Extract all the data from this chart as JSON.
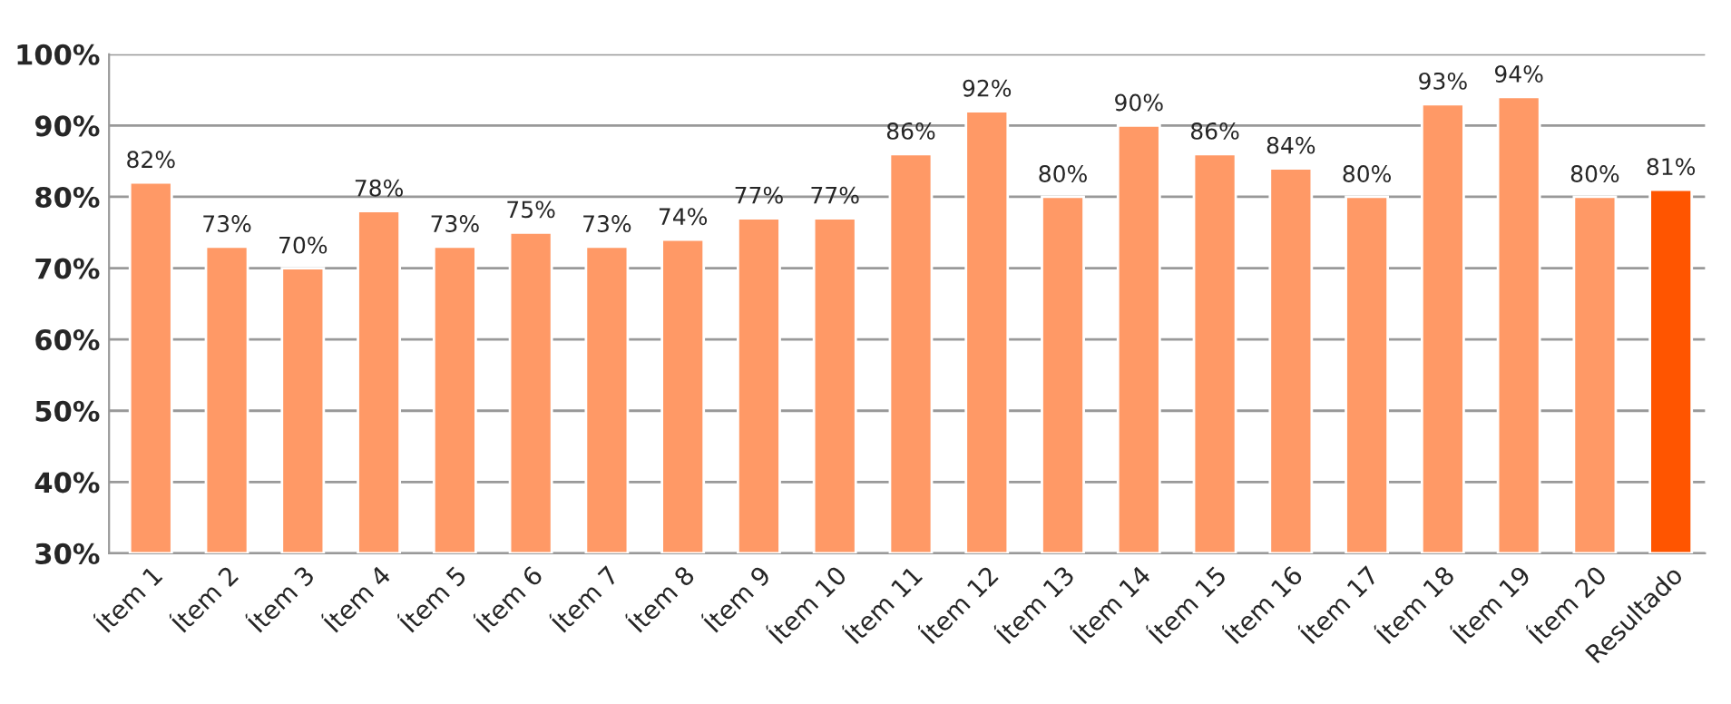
{
  "chart_data": {
    "type": "bar",
    "categories": [
      "Ítem 1",
      "Ítem 2",
      "Ítem 3",
      "Ítem 4",
      "Ítem 5",
      "Ítem 6",
      "Ítem 7",
      "Ítem 8",
      "Ítem 9",
      "Ítem 10",
      "Ítem 11",
      "Ítem 12",
      "Ítem 13",
      "Ítem 14",
      "Ítem 15",
      "Ítem 16",
      "Ítem 17",
      "Ítem 18",
      "Ítem 19",
      "Ítem 20",
      "Resultado"
    ],
    "values": [
      82,
      73,
      70,
      78,
      73,
      75,
      73,
      74,
      77,
      77,
      86,
      92,
      80,
      90,
      86,
      84,
      80,
      93,
      94,
      80,
      81
    ],
    "value_labels": [
      "82%",
      "73%",
      "70%",
      "78%",
      "73%",
      "75%",
      "73%",
      "74%",
      "77%",
      "77%",
      "86%",
      "92%",
      "80%",
      "90%",
      "86%",
      "84%",
      "80%",
      "93%",
      "94%",
      "80%",
      "81%"
    ],
    "colors": [
      "#ff9966",
      "#ff9966",
      "#ff9966",
      "#ff9966",
      "#ff9966",
      "#ff9966",
      "#ff9966",
      "#ff9966",
      "#ff9966",
      "#ff9966",
      "#ff9966",
      "#ff9966",
      "#ff9966",
      "#ff9966",
      "#ff9966",
      "#ff9966",
      "#ff9966",
      "#ff9966",
      "#ff9966",
      "#ff9966",
      "#ff5500"
    ],
    "ylim": [
      30,
      100
    ],
    "yticks": [
      {
        "value": 30,
        "label": "30%"
      },
      {
        "value": 40,
        "label": "40%"
      },
      {
        "value": 50,
        "label": "50%"
      },
      {
        "value": 60,
        "label": "60%"
      },
      {
        "value": 70,
        "label": "70%"
      },
      {
        "value": 80,
        "label": "80%"
      },
      {
        "value": 90,
        "label": "90%"
      },
      {
        "value": 100,
        "label": "100%"
      }
    ],
    "grid": "y",
    "legend": false
  }
}
